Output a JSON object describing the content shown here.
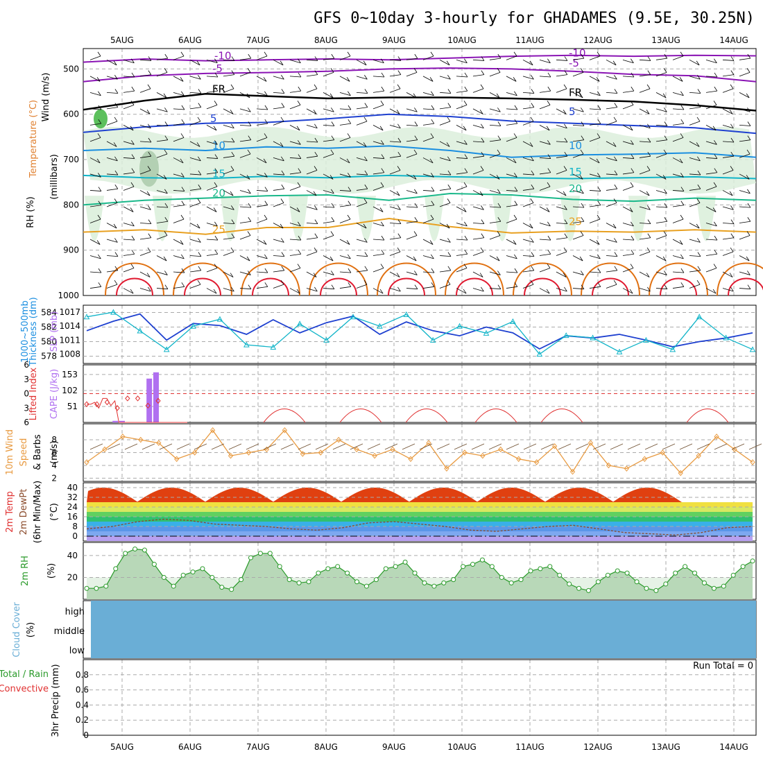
{
  "title": "GFS 0~10day 3-hourly for GHADAMES (9.5E, 30.25N)",
  "dates": [
    "5AUG",
    "6AUG",
    "7AUG",
    "8AUG",
    "9AUG",
    "10AUG",
    "11AUG",
    "12AUG",
    "13AUG",
    "14AUG"
  ],
  "colors": {
    "purple": "#8a14b4",
    "black": "#000000",
    "blue": "#1e40d0",
    "lightblue": "#1a8ee0",
    "cyan": "#10b4c8",
    "teal": "#1ab88a",
    "orange": "#e8a020",
    "darkorange": "#e07010",
    "red": "#e01a30",
    "rh_fill": "#dcefdc",
    "rh_dark": "#a8c8a8",
    "green": "#2a9a2a",
    "cloud": "#6aaed6",
    "cape": "#b070f0",
    "li": "#e03030",
    "wind": "#e89a40"
  },
  "panel_labels": {
    "p1": [
      "Wind (m/s)",
      "Temperature (°C)",
      "RH (%)",
      "(millibars)"
    ],
    "p2": [
      "Thickness (dm)",
      "1000~500mb",
      "SLP (mb)"
    ],
    "p3": [
      "Lifted Index",
      "CAPE (J/kg)"
    ],
    "p4": [
      "10m Wind",
      "Speed",
      "& Barbs",
      "(m/s)"
    ],
    "p5": [
      "2m Temp",
      "2m DewPt",
      "(6hr Min/Max)",
      "(°C)"
    ],
    "p6": [
      "2m RH",
      "(%)"
    ],
    "p7": [
      "Cloud Cover",
      "(%)"
    ],
    "p8": [
      "Total / Rain",
      "Convective",
      "3hr Precip (mm)"
    ]
  },
  "run_total": "Run Total = 0",
  "cloud_levels": [
    "high",
    "middle",
    "low"
  ],
  "chart_data": [
    {
      "type": "line",
      "title": "Vertical cross-section",
      "ylabel": "(millibars)",
      "yticks": [
        "500",
        "600",
        "700",
        "800",
        "900",
        "1000"
      ],
      "isotherms": [
        {
          "name": "-10",
          "pressure_mb": [
            485,
            478,
            482,
            480,
            478,
            480,
            476,
            472,
            470,
            472,
            470,
            471
          ]
        },
        {
          "name": "-5",
          "pressure_mb": [
            528,
            515,
            510,
            508,
            505,
            500,
            498,
            500,
            505,
            512,
            515,
            528
          ]
        },
        {
          "name": "FR",
          "pressure_mb": [
            590,
            570,
            555,
            560,
            565,
            563,
            563,
            565,
            568,
            572,
            580,
            592
          ]
        },
        {
          "name": "5",
          "pressure_mb": [
            640,
            628,
            620,
            618,
            610,
            600,
            605,
            615,
            620,
            625,
            630,
            642
          ]
        },
        {
          "name": "10",
          "pressure_mb": [
            680,
            675,
            680,
            672,
            675,
            670,
            680,
            695,
            690,
            688,
            685,
            695
          ]
        },
        {
          "name": "15",
          "pressure_mb": [
            735,
            740,
            742,
            737,
            740,
            735,
            738,
            740,
            742,
            740,
            738,
            742
          ]
        },
        {
          "name": "20",
          "pressure_mb": [
            800,
            790,
            785,
            780,
            778,
            790,
            775,
            778,
            788,
            792,
            785,
            790
          ]
        },
        {
          "name": "25",
          "pressure_mb": [
            860,
            855,
            865,
            850,
            850,
            830,
            848,
            862,
            858,
            860,
            855,
            860
          ]
        }
      ],
      "contour_labels": [
        "-10",
        "-5",
        "FR",
        "5",
        "10",
        "15",
        "20",
        "25"
      ]
    },
    {
      "type": "line",
      "title": "Thickness and SLP",
      "ylabel_left": "Thickness (dm)",
      "ylabel_right": "SLP (mb)",
      "yticks_left": [
        "578",
        "580",
        "582",
        "584"
      ],
      "yticks_right": [
        "1008",
        "1011",
        "1014",
        "1017"
      ],
      "series": [
        {
          "name": "1000~500mb",
          "values": [
            581.5,
            582.8,
            583.8,
            580.2,
            582.5,
            582.2,
            581.0,
            583.0,
            581.2,
            582.6,
            583.5,
            581.0,
            582.7,
            581.5,
            580.8,
            582.0,
            581.2,
            579.0,
            580.8,
            580.5,
            581.0,
            580.2,
            579.3,
            580.0,
            580.5,
            581.2
          ]
        },
        {
          "name": "SLP (mb)",
          "values": [
            1016.0,
            1017.0,
            1013.0,
            1009.0,
            1014.0,
            1015.5,
            1010.0,
            1009.5,
            1014.5,
            1011.0,
            1016.0,
            1014.0,
            1016.5,
            1011.0,
            1014.0,
            1012.5,
            1015.0,
            1008.0,
            1012.0,
            1011.5,
            1008.5,
            1011.0,
            1009.0,
            1016.0,
            1011.5,
            1009.0
          ]
        }
      ]
    },
    {
      "type": "bar",
      "title": "Lifted Index and CAPE",
      "ylabel_left": "Lifted Index",
      "ylabel_right": "CAPE (J/kg)",
      "yticks_left": [
        "-6",
        "-3",
        "0",
        "3",
        "6"
      ],
      "yticks_right": [
        "51",
        "102",
        "153"
      ],
      "cape_bars": [
        {
          "day": 5.4,
          "value": 140
        },
        {
          "day": 5.5,
          "value": 160
        },
        {
          "day": 4.9,
          "value": 5
        },
        {
          "day": 5.0,
          "value": 5
        }
      ],
      "lifted_index": [
        2.2,
        2.2,
        1.8,
        3.0,
        1.0,
        1.0,
        2.5,
        1.5,
        6,
        6,
        6,
        6,
        6,
        6,
        6,
        6,
        6,
        6,
        6,
        6,
        6,
        6,
        6,
        6,
        6,
        6
      ]
    },
    {
      "type": "line",
      "title": "10m Wind Speed",
      "ylabel": "(m/s)",
      "yticks": [
        "2",
        "4",
        "6",
        "8"
      ],
      "series": [
        {
          "name": "10m Wind",
          "values": [
            4.5,
            6.5,
            8.5,
            8.0,
            7.5,
            5.0,
            6.0,
            9.5,
            5.5,
            6.0,
            6.5,
            9.5,
            5.8,
            6.0,
            8.0,
            6.5,
            5.5,
            6.5,
            5.0,
            7.5,
            3.5,
            6.0,
            5.5,
            6.5,
            5.0,
            4.5,
            7.0,
            3.0,
            7.5,
            4.0,
            3.5,
            5.0,
            6.0,
            2.8,
            5.5,
            8.5,
            6.5,
            4.5
          ]
        }
      ]
    },
    {
      "type": "area",
      "title": "2m Temp and DewPt",
      "ylabel": "(°C)",
      "yticks": [
        "0",
        "8",
        "16",
        "24",
        "32",
        "40"
      ],
      "series": [
        {
          "name": "2m Temp",
          "min": 27,
          "max": 40
        },
        {
          "name": "2m DewPt",
          "values": [
            6,
            8,
            12,
            14,
            13,
            10,
            9,
            8,
            6,
            5,
            7,
            11,
            12,
            10,
            8,
            5,
            4,
            6,
            8,
            9,
            6,
            3,
            2,
            1,
            3,
            7,
            8
          ]
        }
      ]
    },
    {
      "type": "area",
      "title": "2m RH",
      "ylabel": "(%)",
      "yticks": [
        "20",
        "40"
      ],
      "series": [
        {
          "name": "2m RH",
          "values": [
            10,
            10,
            12,
            28,
            42,
            46,
            45,
            32,
            20,
            12,
            22,
            25,
            28,
            20,
            11,
            9,
            18,
            38,
            42,
            42,
            30,
            18,
            15,
            16,
            24,
            28,
            30,
            24,
            16,
            12,
            18,
            28,
            30,
            34,
            24,
            15,
            12,
            15,
            18,
            30,
            32,
            36,
            30,
            20,
            15,
            18,
            26,
            28,
            30,
            22,
            14,
            10,
            8,
            16,
            22,
            26,
            24,
            16,
            10,
            8,
            14,
            24,
            30,
            24,
            15,
            10,
            12,
            22,
            30,
            35
          ]
        }
      ]
    },
    {
      "type": "area",
      "title": "Cloud Cover",
      "ylabel": "(%)",
      "categories": [
        "high",
        "middle",
        "low"
      ]
    },
    {
      "type": "line",
      "title": "3hr Precip",
      "ylabel": "3hr Precip (mm)",
      "yticks": [
        "0",
        "0.2",
        "0.4",
        "0.6",
        "0.8"
      ],
      "ylim": [
        0,
        1
      ],
      "series": [
        {
          "name": "Total / Rain",
          "values": []
        },
        {
          "name": "Convective",
          "values": []
        }
      ]
    }
  ]
}
